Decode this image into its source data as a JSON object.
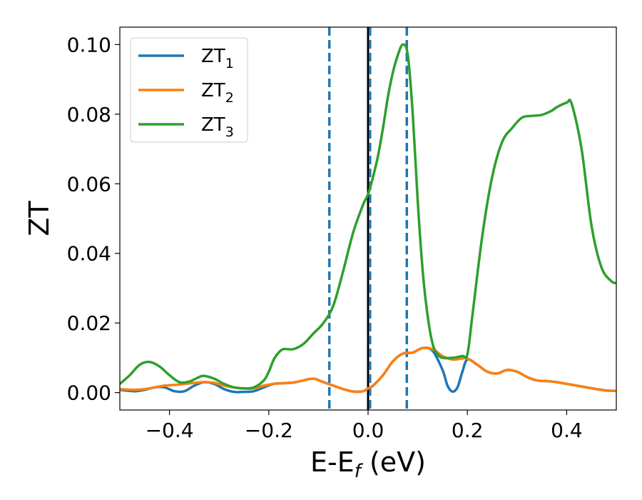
{
  "chart_data": {
    "type": "line",
    "xlabel": "E-E",
    "xlabel_sub": "f",
    "xlabel_unit": " (eV)",
    "ylabel": "ZT",
    "xlim": [
      -0.5,
      0.5
    ],
    "ylim": [
      -0.005,
      0.105
    ],
    "xticks": [
      -0.4,
      -0.2,
      0.0,
      0.2,
      0.4
    ],
    "xtick_labels": [
      "−0.4",
      "−0.2",
      "0.0",
      "0.2",
      "0.4"
    ],
    "yticks": [
      0.0,
      0.02,
      0.04,
      0.06,
      0.08,
      0.1
    ],
    "ytick_labels": [
      "0.00",
      "0.02",
      "0.04",
      "0.06",
      "0.08",
      "0.10"
    ],
    "grid": false,
    "legend_position": "top-left",
    "vlines": [
      {
        "x": -0.078,
        "style": "dashed",
        "color": "#1f77b4"
      },
      {
        "x": 0.0,
        "style": "solid",
        "color": "#000000"
      },
      {
        "x": 0.004,
        "style": "dashed",
        "color": "#1f77b4"
      },
      {
        "x": 0.078,
        "style": "dashed",
        "color": "#1f77b4"
      }
    ],
    "series": [
      {
        "name": "ZT",
        "sub": "1",
        "color": "#1f77b4",
        "x": [
          -0.5,
          -0.47,
          -0.45,
          -0.43,
          -0.41,
          -0.39,
          -0.37,
          -0.35,
          -0.33,
          -0.31,
          -0.29,
          -0.27,
          -0.25,
          -0.23,
          -0.21,
          -0.19,
          -0.17,
          -0.15,
          -0.13,
          -0.11,
          -0.09,
          -0.07,
          -0.05,
          -0.03,
          -0.01,
          0.0,
          0.01,
          0.03,
          0.05,
          0.07,
          0.09,
          0.11,
          0.13,
          0.15,
          0.16,
          0.17,
          0.18,
          0.19,
          0.2,
          0.22,
          0.24,
          0.26,
          0.28,
          0.3,
          0.32,
          0.34,
          0.36,
          0.38,
          0.4,
          0.42,
          0.44,
          0.46,
          0.48,
          0.5
        ],
        "y": [
          0.0008,
          0.0004,
          0.0008,
          0.0015,
          0.0015,
          0.0004,
          0.0004,
          0.002,
          0.003,
          0.0025,
          0.001,
          0.0002,
          0.0002,
          0.0004,
          0.0015,
          0.0025,
          0.0027,
          0.0029,
          0.0035,
          0.004,
          0.003,
          0.002,
          0.001,
          0.0003,
          0.0004,
          0.0012,
          0.002,
          0.005,
          0.009,
          0.0112,
          0.0115,
          0.0128,
          0.012,
          0.0065,
          0.002,
          0.0003,
          0.0015,
          0.006,
          0.0095,
          0.008,
          0.006,
          0.0055,
          0.0065,
          0.006,
          0.0045,
          0.0035,
          0.0033,
          0.003,
          0.0025,
          0.002,
          0.0015,
          0.001,
          0.0006,
          0.0005
        ]
      },
      {
        "name": "ZT",
        "sub": "2",
        "color": "#ff7f0e",
        "x": [
          -0.5,
          -0.47,
          -0.45,
          -0.43,
          -0.41,
          -0.39,
          -0.37,
          -0.35,
          -0.33,
          -0.31,
          -0.29,
          -0.27,
          -0.25,
          -0.23,
          -0.21,
          -0.19,
          -0.17,
          -0.15,
          -0.13,
          -0.11,
          -0.09,
          -0.07,
          -0.05,
          -0.03,
          -0.01,
          0.0,
          0.01,
          0.03,
          0.05,
          0.07,
          0.09,
          0.11,
          0.13,
          0.15,
          0.17,
          0.19,
          0.2,
          0.22,
          0.24,
          0.26,
          0.28,
          0.3,
          0.32,
          0.34,
          0.36,
          0.38,
          0.4,
          0.42,
          0.44,
          0.46,
          0.48,
          0.5
        ],
        "y": [
          0.001,
          0.0008,
          0.001,
          0.0015,
          0.002,
          0.0022,
          0.0025,
          0.0028,
          0.003,
          0.0028,
          0.002,
          0.0015,
          0.0012,
          0.0012,
          0.002,
          0.0025,
          0.0027,
          0.0029,
          0.0035,
          0.004,
          0.003,
          0.002,
          0.001,
          0.0003,
          0.0004,
          0.0012,
          0.002,
          0.005,
          0.009,
          0.0112,
          0.0115,
          0.0128,
          0.0125,
          0.0105,
          0.0095,
          0.0098,
          0.0098,
          0.008,
          0.006,
          0.0055,
          0.0065,
          0.006,
          0.0045,
          0.0035,
          0.0033,
          0.003,
          0.0025,
          0.002,
          0.0015,
          0.001,
          0.0006,
          0.0005
        ]
      },
      {
        "name": "ZT",
        "sub": "3",
        "color": "#2ca02c",
        "x": [
          -0.5,
          -0.48,
          -0.46,
          -0.44,
          -0.42,
          -0.4,
          -0.38,
          -0.36,
          -0.34,
          -0.33,
          -0.31,
          -0.29,
          -0.27,
          -0.25,
          -0.23,
          -0.21,
          -0.2,
          -0.19,
          -0.18,
          -0.17,
          -0.15,
          -0.13,
          -0.11,
          -0.09,
          -0.07,
          -0.05,
          -0.03,
          -0.01,
          0.0,
          0.01,
          0.02,
          0.03,
          0.04,
          0.05,
          0.06,
          0.07,
          0.08,
          0.09,
          0.1,
          0.11,
          0.12,
          0.13,
          0.14,
          0.15,
          0.17,
          0.19,
          0.2,
          0.21,
          0.23,
          0.25,
          0.27,
          0.29,
          0.31,
          0.33,
          0.35,
          0.37,
          0.38,
          0.4,
          0.41,
          0.43,
          0.45,
          0.47,
          0.49,
          0.5
        ],
        "y": [
          0.0025,
          0.005,
          0.008,
          0.0088,
          0.0075,
          0.005,
          0.003,
          0.0032,
          0.0045,
          0.0048,
          0.004,
          0.0025,
          0.0015,
          0.0012,
          0.0015,
          0.0035,
          0.006,
          0.0095,
          0.0115,
          0.0125,
          0.0125,
          0.014,
          0.017,
          0.02,
          0.025,
          0.035,
          0.046,
          0.054,
          0.057,
          0.062,
          0.068,
          0.076,
          0.085,
          0.092,
          0.097,
          0.1,
          0.097,
          0.08,
          0.055,
          0.035,
          0.022,
          0.014,
          0.011,
          0.01,
          0.01,
          0.0105,
          0.011,
          0.022,
          0.045,
          0.062,
          0.072,
          0.076,
          0.079,
          0.0795,
          0.0798,
          0.081,
          0.082,
          0.0833,
          0.083,
          0.07,
          0.048,
          0.036,
          0.032,
          0.0315
        ]
      }
    ]
  }
}
